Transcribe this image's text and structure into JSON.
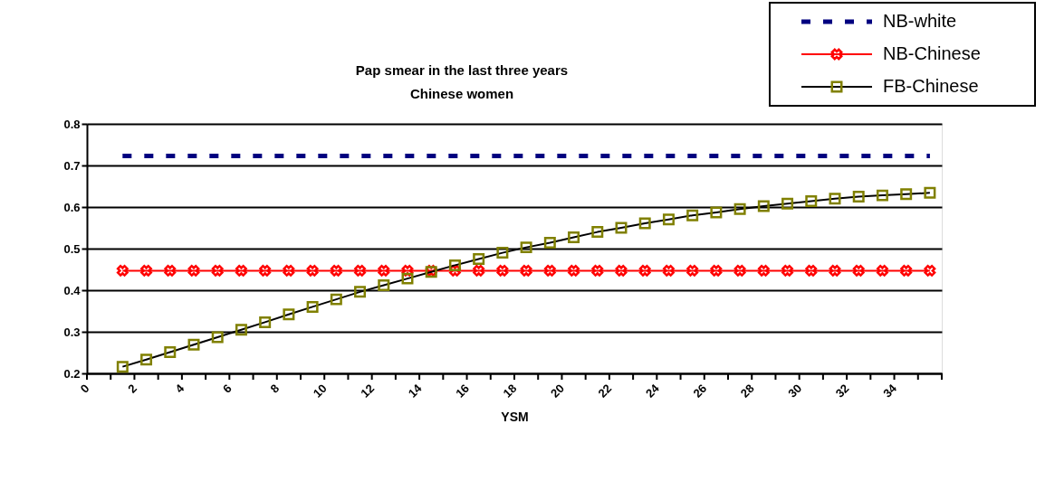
{
  "chart_data": {
    "type": "line",
    "title": "Pap smear in the last three years",
    "subtitle": "Chinese women",
    "xlabel": "YSM",
    "x": [
      1.5,
      2.5,
      3.5,
      4.5,
      5.5,
      6.5,
      7.5,
      8.5,
      9.5,
      10.5,
      11.5,
      12.5,
      13.5,
      14.5,
      15.5,
      16.5,
      17.5,
      18.5,
      19.5,
      20.5,
      21.5,
      22.5,
      23.5,
      24.5,
      25.5,
      26.5,
      27.5,
      28.5,
      29.5,
      30.5,
      31.5,
      32.5,
      33.5,
      34.5,
      35.5
    ],
    "series": [
      {
        "name": "NB-white",
        "color": "#000080",
        "marker": "none",
        "line_style": "dashed",
        "values": [
          0.723,
          0.723,
          0.723,
          0.723,
          0.723,
          0.723,
          0.723,
          0.723,
          0.723,
          0.723,
          0.723,
          0.723,
          0.723,
          0.723,
          0.723,
          0.723,
          0.723,
          0.723,
          0.723,
          0.723,
          0.723,
          0.723,
          0.723,
          0.723,
          0.723,
          0.723,
          0.723,
          0.723,
          0.723,
          0.723,
          0.723,
          0.723,
          0.723,
          0.723,
          0.723
        ]
      },
      {
        "name": "NB-Chinese",
        "color": "#ff0000",
        "marker": "cross",
        "line_style": "solid",
        "values": [
          0.447,
          0.447,
          0.447,
          0.447,
          0.447,
          0.447,
          0.447,
          0.447,
          0.447,
          0.447,
          0.447,
          0.447,
          0.447,
          0.447,
          0.447,
          0.447,
          0.447,
          0.447,
          0.447,
          0.447,
          0.447,
          0.447,
          0.447,
          0.447,
          0.447,
          0.447,
          0.447,
          0.447,
          0.447,
          0.447,
          0.447,
          0.447,
          0.447,
          0.447,
          0.447
        ]
      },
      {
        "name": "FB-Chinese",
        "color": "#808000",
        "marker": "square",
        "line_style": "solid",
        "values": [
          0.216,
          0.233,
          0.251,
          0.269,
          0.287,
          0.305,
          0.323,
          0.342,
          0.36,
          0.378,
          0.396,
          0.412,
          0.428,
          0.444,
          0.46,
          0.475,
          0.49,
          0.503,
          0.514,
          0.527,
          0.54,
          0.55,
          0.561,
          0.57,
          0.58,
          0.587,
          0.595,
          0.602,
          0.608,
          0.614,
          0.62,
          0.625,
          0.628,
          0.631,
          0.634
        ]
      }
    ],
    "xlim": [
      0,
      36
    ],
    "xticks": [
      0,
      {
        "value": 1,
        "label": null
      },
      2,
      {
        "value": 3,
        "label": null
      },
      4,
      {
        "value": 5,
        "label": null
      },
      6,
      {
        "value": 7,
        "label": null
      },
      8,
      {
        "value": 9,
        "label": null
      },
      10,
      {
        "value": 11,
        "label": null
      },
      12,
      {
        "value": 13,
        "label": null
      },
      14,
      {
        "value": 15,
        "label": null
      },
      16,
      {
        "value": 17,
        "label": null
      },
      18,
      {
        "value": 19,
        "label": null
      },
      20,
      {
        "value": 21,
        "label": null
      },
      22,
      {
        "value": 23,
        "label": null
      },
      24,
      {
        "value": 25,
        "label": null
      },
      26,
      {
        "value": 27,
        "label": null
      },
      28,
      {
        "value": 29,
        "label": null
      },
      30,
      {
        "value": 31,
        "label": null
      },
      32,
      {
        "value": 33,
        "label": null
      },
      34,
      {
        "value": 35,
        "label": null
      },
      {
        "value": 36,
        "label": null
      }
    ],
    "ylim": [
      0.2,
      0.8
    ],
    "yticks": [
      0.2,
      0.3,
      0.4,
      0.5,
      0.6,
      0.7,
      0.8
    ],
    "grid": "y",
    "legend": "top right"
  }
}
